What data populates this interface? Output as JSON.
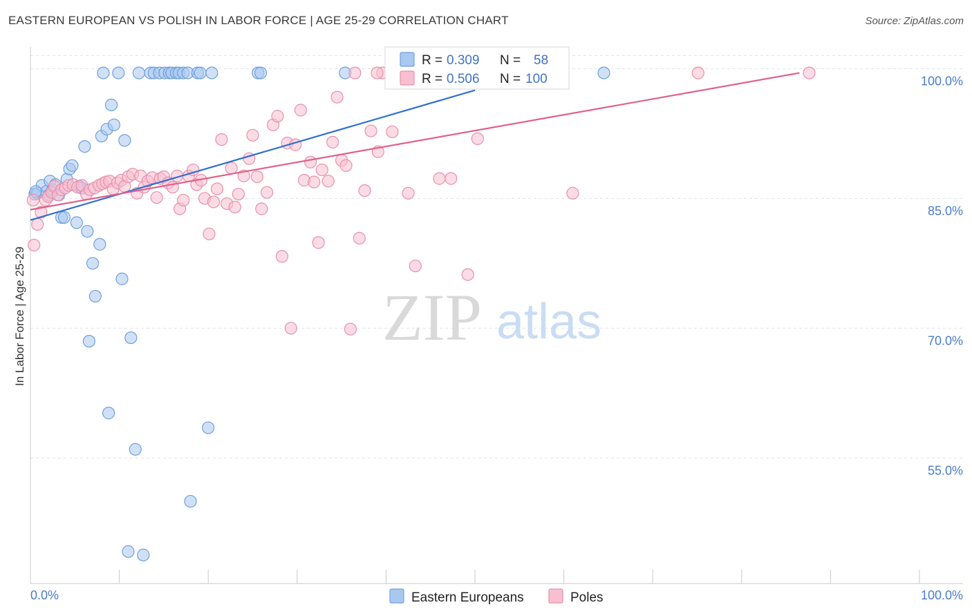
{
  "title": "EASTERN EUROPEAN VS POLISH IN LABOR FORCE | AGE 25-29 CORRELATION CHART",
  "source": "Source: ZipAtlas.com",
  "watermark": {
    "zip": "ZIP",
    "atlas": "atlas"
  },
  "colors": {
    "blue_fill": "#a9c8f0",
    "blue_stroke": "#6f9fdc",
    "blue_line": "#2f6fcf",
    "pink_fill": "#f7bfd0",
    "pink_stroke": "#e88fac",
    "pink_line": "#e0608a",
    "axis_text": "#4a7cc9",
    "grid": "#dde3ea"
  },
  "legend": {
    "row1": {
      "r_label": "R = ",
      "r_value": "0.309",
      "n_label": "N = ",
      "n_value": "58"
    },
    "row2": {
      "r_label": "R = ",
      "r_value": "0.506",
      "n_label": "N = ",
      "n_value": "100"
    }
  },
  "bottom_legend": [
    "Eastern Europeans",
    "Poles"
  ],
  "chart_data": {
    "type": "scatter",
    "title": "EASTERN EUROPEAN VS POLISH IN LABOR FORCE | AGE 25-29 CORRELATION CHART",
    "xlabel": "",
    "ylabel": "In Labor Force | Age 25-29",
    "xlim": [
      0,
      100
    ],
    "ylim": [
      40.5,
      102.5
    ],
    "x_tick_labels": [
      "0.0%",
      "100.0%"
    ],
    "y_ticks": [
      55,
      70,
      85,
      100
    ],
    "y_tick_labels": [
      "55.0%",
      "70.0%",
      "85.0%",
      "100.0%"
    ],
    "grid": true,
    "legend_position": "top-center",
    "series": [
      {
        "name": "Eastern Europeans",
        "r": 0.309,
        "n": 58,
        "trend": {
          "x": [
            0,
            50
          ],
          "y": [
            82.5,
            97.5
          ]
        },
        "points": [
          {
            "x": 0.5,
            "y": 85.5
          },
          {
            "x": 0.8,
            "y": 85.6
          },
          {
            "x": 1.3,
            "y": 86.5
          },
          {
            "x": 1.8,
            "y": 85.8
          },
          {
            "x": 2.1,
            "y": 85.4
          },
          {
            "x": 2.2,
            "y": 87.0
          },
          {
            "x": 2.5,
            "y": 86.0
          },
          {
            "x": 2.8,
            "y": 86.6
          },
          {
            "x": 3.2,
            "y": 85.4
          },
          {
            "x": 3.5,
            "y": 82.8
          },
          {
            "x": 3.8,
            "y": 82.8
          },
          {
            "x": 4.1,
            "y": 87.2
          },
          {
            "x": 4.4,
            "y": 88.4
          },
          {
            "x": 4.7,
            "y": 88.8
          },
          {
            "x": 5.2,
            "y": 82.2
          },
          {
            "x": 5.5,
            "y": 86.4
          },
          {
            "x": 5.8,
            "y": 86.2
          },
          {
            "x": 6.1,
            "y": 91.0
          },
          {
            "x": 6.4,
            "y": 81.2
          },
          {
            "x": 6.6,
            "y": 68.5
          },
          {
            "x": 7.0,
            "y": 77.5
          },
          {
            "x": 7.3,
            "y": 73.7
          },
          {
            "x": 7.8,
            "y": 79.7
          },
          {
            "x": 8.0,
            "y": 92.2
          },
          {
            "x": 8.2,
            "y": 99.5
          },
          {
            "x": 8.6,
            "y": 93.0
          },
          {
            "x": 8.8,
            "y": 60.2
          },
          {
            "x": 9.1,
            "y": 95.8
          },
          {
            "x": 9.4,
            "y": 93.5
          },
          {
            "x": 9.9,
            "y": 99.5
          },
          {
            "x": 10.3,
            "y": 75.7
          },
          {
            "x": 10.6,
            "y": 91.7
          },
          {
            "x": 11.0,
            "y": 44.2
          },
          {
            "x": 11.3,
            "y": 68.9
          },
          {
            "x": 11.8,
            "y": 56.0
          },
          {
            "x": 12.2,
            "y": 99.5
          },
          {
            "x": 12.7,
            "y": 43.8
          },
          {
            "x": 13.5,
            "y": 99.5
          },
          {
            "x": 13.9,
            "y": 99.5
          },
          {
            "x": 14.5,
            "y": 99.5
          },
          {
            "x": 15.1,
            "y": 99.5
          },
          {
            "x": 15.6,
            "y": 99.5
          },
          {
            "x": 15.9,
            "y": 99.5
          },
          {
            "x": 16.4,
            "y": 99.5
          },
          {
            "x": 16.7,
            "y": 99.5
          },
          {
            "x": 17.2,
            "y": 99.5
          },
          {
            "x": 17.7,
            "y": 99.5
          },
          {
            "x": 18.0,
            "y": 50.0
          },
          {
            "x": 18.8,
            "y": 99.5
          },
          {
            "x": 19.1,
            "y": 99.5
          },
          {
            "x": 20.0,
            "y": 58.5
          },
          {
            "x": 20.4,
            "y": 99.5
          },
          {
            "x": 25.6,
            "y": 99.5
          },
          {
            "x": 25.9,
            "y": 99.5
          },
          {
            "x": 35.4,
            "y": 99.5
          },
          {
            "x": 42.8,
            "y": 99.5
          },
          {
            "x": 64.5,
            "y": 99.5
          },
          {
            "x": 0.6,
            "y": 85.8
          }
        ]
      },
      {
        "name": "Poles",
        "r": 0.506,
        "n": 100,
        "trend": {
          "x": [
            0,
            86.5
          ],
          "y": [
            83.7,
            99.5
          ]
        },
        "points": [
          {
            "x": 0.4,
            "y": 79.6
          },
          {
            "x": 0.8,
            "y": 82.0
          },
          {
            "x": 1.2,
            "y": 83.4
          },
          {
            "x": 1.7,
            "y": 84.8
          },
          {
            "x": 2.0,
            "y": 85.2
          },
          {
            "x": 2.4,
            "y": 85.7
          },
          {
            "x": 2.7,
            "y": 86.4
          },
          {
            "x": 3.1,
            "y": 85.4
          },
          {
            "x": 3.5,
            "y": 86.0
          },
          {
            "x": 3.9,
            "y": 86.2
          },
          {
            "x": 4.3,
            "y": 86.5
          },
          {
            "x": 4.8,
            "y": 86.6
          },
          {
            "x": 5.3,
            "y": 86.3
          },
          {
            "x": 5.8,
            "y": 86.5
          },
          {
            "x": 6.3,
            "y": 85.5
          },
          {
            "x": 6.7,
            "y": 86.0
          },
          {
            "x": 7.2,
            "y": 86.2
          },
          {
            "x": 7.7,
            "y": 86.5
          },
          {
            "x": 8.1,
            "y": 86.7
          },
          {
            "x": 8.5,
            "y": 86.9
          },
          {
            "x": 8.9,
            "y": 87.0
          },
          {
            "x": 9.3,
            "y": 86.1
          },
          {
            "x": 9.8,
            "y": 86.8
          },
          {
            "x": 10.2,
            "y": 87.1
          },
          {
            "x": 10.6,
            "y": 86.4
          },
          {
            "x": 11.0,
            "y": 87.5
          },
          {
            "x": 11.5,
            "y": 87.8
          },
          {
            "x": 12.0,
            "y": 85.6
          },
          {
            "x": 12.4,
            "y": 87.6
          },
          {
            "x": 12.8,
            "y": 86.3
          },
          {
            "x": 13.2,
            "y": 87.0
          },
          {
            "x": 13.7,
            "y": 87.4
          },
          {
            "x": 14.2,
            "y": 85.1
          },
          {
            "x": 14.6,
            "y": 87.3
          },
          {
            "x": 15.0,
            "y": 87.5
          },
          {
            "x": 15.5,
            "y": 86.8
          },
          {
            "x": 16.0,
            "y": 86.3
          },
          {
            "x": 16.5,
            "y": 87.6
          },
          {
            "x": 16.8,
            "y": 83.8
          },
          {
            "x": 17.2,
            "y": 84.8
          },
          {
            "x": 17.8,
            "y": 87.6
          },
          {
            "x": 18.3,
            "y": 88.3
          },
          {
            "x": 18.7,
            "y": 86.6
          },
          {
            "x": 19.2,
            "y": 87.1
          },
          {
            "x": 19.6,
            "y": 85.0
          },
          {
            "x": 20.1,
            "y": 80.9
          },
          {
            "x": 20.6,
            "y": 84.6
          },
          {
            "x": 21.0,
            "y": 86.1
          },
          {
            "x": 21.5,
            "y": 91.8
          },
          {
            "x": 22.1,
            "y": 84.4
          },
          {
            "x": 22.6,
            "y": 88.5
          },
          {
            "x": 23.0,
            "y": 84.0
          },
          {
            "x": 23.4,
            "y": 85.5
          },
          {
            "x": 24.0,
            "y": 87.6
          },
          {
            "x": 24.6,
            "y": 89.6
          },
          {
            "x": 25.0,
            "y": 92.3
          },
          {
            "x": 25.5,
            "y": 87.5
          },
          {
            "x": 26.0,
            "y": 83.8
          },
          {
            "x": 26.6,
            "y": 85.7
          },
          {
            "x": 27.3,
            "y": 93.5
          },
          {
            "x": 27.8,
            "y": 94.5
          },
          {
            "x": 28.3,
            "y": 78.3
          },
          {
            "x": 28.9,
            "y": 91.4
          },
          {
            "x": 29.3,
            "y": 70.0
          },
          {
            "x": 29.8,
            "y": 91.2
          },
          {
            "x": 30.4,
            "y": 95.2
          },
          {
            "x": 30.8,
            "y": 87.1
          },
          {
            "x": 31.5,
            "y": 89.2
          },
          {
            "x": 31.9,
            "y": 86.9
          },
          {
            "x": 32.4,
            "y": 79.9
          },
          {
            "x": 32.8,
            "y": 88.3
          },
          {
            "x": 33.5,
            "y": 87.0
          },
          {
            "x": 34.0,
            "y": 91.5
          },
          {
            "x": 34.5,
            "y": 96.7
          },
          {
            "x": 35.0,
            "y": 89.4
          },
          {
            "x": 35.5,
            "y": 88.8
          },
          {
            "x": 36.0,
            "y": 69.9
          },
          {
            "x": 36.5,
            "y": 99.5
          },
          {
            "x": 37.0,
            "y": 80.4
          },
          {
            "x": 37.6,
            "y": 85.9
          },
          {
            "x": 38.3,
            "y": 92.8
          },
          {
            "x": 39.1,
            "y": 90.4
          },
          {
            "x": 39.6,
            "y": 99.5
          },
          {
            "x": 40.7,
            "y": 92.7
          },
          {
            "x": 42.5,
            "y": 85.6
          },
          {
            "x": 43.3,
            "y": 77.2
          },
          {
            "x": 45.5,
            "y": 99.5
          },
          {
            "x": 46.0,
            "y": 87.3
          },
          {
            "x": 47.3,
            "y": 87.3
          },
          {
            "x": 49.2,
            "y": 76.2
          },
          {
            "x": 50.3,
            "y": 91.9
          },
          {
            "x": 51.0,
            "y": 99.5
          },
          {
            "x": 52.0,
            "y": 99.5
          },
          {
            "x": 55.5,
            "y": 99.5
          },
          {
            "x": 57.5,
            "y": 99.5
          },
          {
            "x": 61.0,
            "y": 85.6
          },
          {
            "x": 75.1,
            "y": 99.5
          },
          {
            "x": 87.6,
            "y": 99.5
          },
          {
            "x": 0.3,
            "y": 84.8
          },
          {
            "x": 39.0,
            "y": 99.5
          }
        ]
      }
    ]
  }
}
